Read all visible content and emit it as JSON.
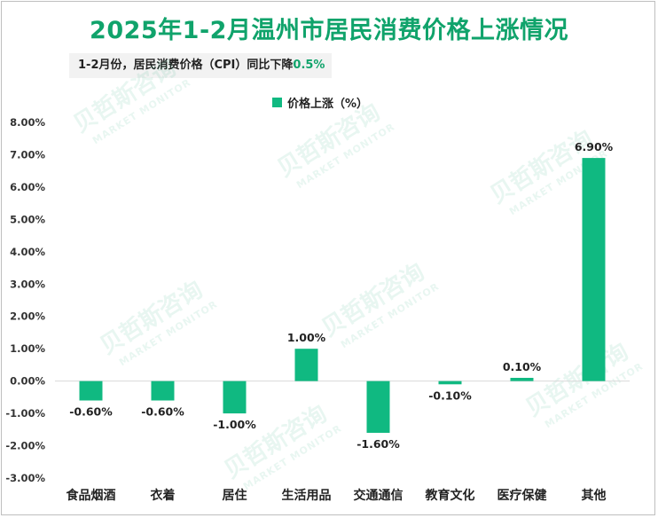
{
  "title": "2025年1-2月温州市居民消费价格上涨情况",
  "subtitle": {
    "text": "1-2月份，居民消费价格（CPI）同比下降",
    "value": "0.5%"
  },
  "watermark": {
    "brand": "贝哲斯咨询",
    "tagline": "MARKET MONITOR"
  },
  "colors": {
    "bar": "#10b981",
    "title": "#10a36b",
    "grid": "#d9d9d9"
  },
  "chart_data": {
    "type": "bar",
    "title": "2025年1-2月温州市居民消费价格上涨情况",
    "categories": [
      "食品烟酒",
      "衣着",
      "居住",
      "生活用品",
      "交通通信",
      "教育文化",
      "医疗保健",
      "其他"
    ],
    "series": [
      {
        "name": "价格上涨（%）",
        "values": [
          -0.6,
          -0.6,
          -1.0,
          1.0,
          -1.6,
          -0.1,
          0.1,
          6.9
        ]
      }
    ],
    "data_labels": [
      "-0.60%",
      "-0.60%",
      "-1.00%",
      "1.00%",
      "-1.60%",
      "-0.10%",
      "0.10%",
      "6.90%"
    ],
    "yticks": [
      8,
      7,
      6,
      5,
      4,
      3,
      2,
      1,
      0,
      -1,
      -2,
      -3
    ],
    "ytick_labels": [
      "8.00%",
      "7.00%",
      "6.00%",
      "5.00%",
      "4.00%",
      "3.00%",
      "2.00%",
      "1.00%",
      "0.00%",
      "-1.00%",
      "-2.00%",
      "-3.00%"
    ],
    "ylim": [
      -3,
      8
    ],
    "legend": "top-center",
    "grid": false
  }
}
